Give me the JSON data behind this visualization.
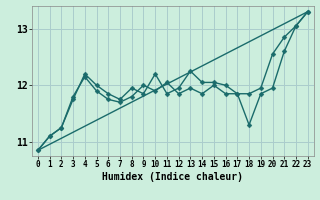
{
  "xlabel": "Humidex (Indice chaleur)",
  "bg_color": "#cceedd",
  "grid_color": "#aacccc",
  "line_color": "#1a6b6b",
  "xlim": [
    -0.5,
    23.5
  ],
  "ylim": [
    10.75,
    13.4
  ],
  "yticks": [
    11,
    12,
    13
  ],
  "xticks": [
    0,
    1,
    2,
    3,
    4,
    5,
    6,
    7,
    8,
    9,
    10,
    11,
    12,
    13,
    14,
    15,
    16,
    17,
    18,
    19,
    20,
    21,
    22,
    23
  ],
  "series1_x": [
    0,
    1,
    2,
    3,
    4,
    5,
    6,
    7,
    8,
    9,
    10,
    11,
    12,
    13,
    14,
    15,
    16,
    17,
    18,
    19,
    20,
    21,
    22,
    23
  ],
  "series1_y": [
    10.85,
    11.1,
    11.25,
    11.75,
    12.2,
    12.0,
    11.85,
    11.75,
    11.95,
    11.85,
    12.2,
    11.85,
    11.95,
    12.25,
    12.05,
    12.05,
    12.0,
    11.85,
    11.85,
    11.95,
    12.55,
    12.85,
    13.05,
    13.3
  ],
  "series2_x": [
    0,
    1,
    2,
    3,
    4,
    5,
    6,
    7,
    8,
    9,
    10,
    11,
    12,
    13,
    14,
    15,
    16,
    17,
    18,
    19,
    20,
    21,
    22,
    23
  ],
  "series2_y": [
    10.85,
    11.1,
    11.25,
    11.8,
    12.15,
    11.9,
    11.75,
    11.7,
    11.8,
    12.0,
    11.9,
    12.05,
    11.85,
    11.95,
    11.85,
    12.0,
    11.85,
    11.85,
    11.3,
    11.85,
    11.95,
    12.6,
    13.05,
    13.3
  ],
  "series3_x": [
    0,
    23
  ],
  "series3_y": [
    10.85,
    13.3
  ],
  "marker_size": 2.5,
  "line_width": 1.0
}
